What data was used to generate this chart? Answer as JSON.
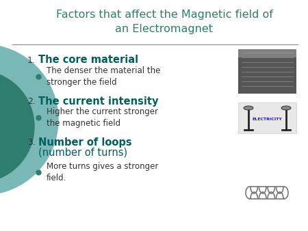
{
  "bg_color": "#ffffff",
  "left_circle_color1": "#2e7d6e",
  "left_circle_color2": "#7ab8b8",
  "title": "Factors that affect the Magnetic field of\nan Electromagnet",
  "title_color": "#2e7d6e",
  "title_fontsize": 11.5,
  "separator_color": "#888888",
  "item1_heading": "The core material",
  "item1_bullet": "The denser the material the\nstronger the field",
  "item2_heading": "The current intensity",
  "item2_bullet": "Higher the current stronger\nthe magnetic field",
  "item3_heading_bold": "Number of loops",
  "item3_heading_normal": "\n(number of turns)",
  "item3_bullet": "More turns gives a stronger\nfield.",
  "heading_color": "#006060",
  "bullet_color": "#333333",
  "number_color": "#333333",
  "bullet_dot_color": "#2e7d6e",
  "heading_fontsize": 10.5,
  "bullet_fontsize": 8.5,
  "number_fontsize": 9
}
